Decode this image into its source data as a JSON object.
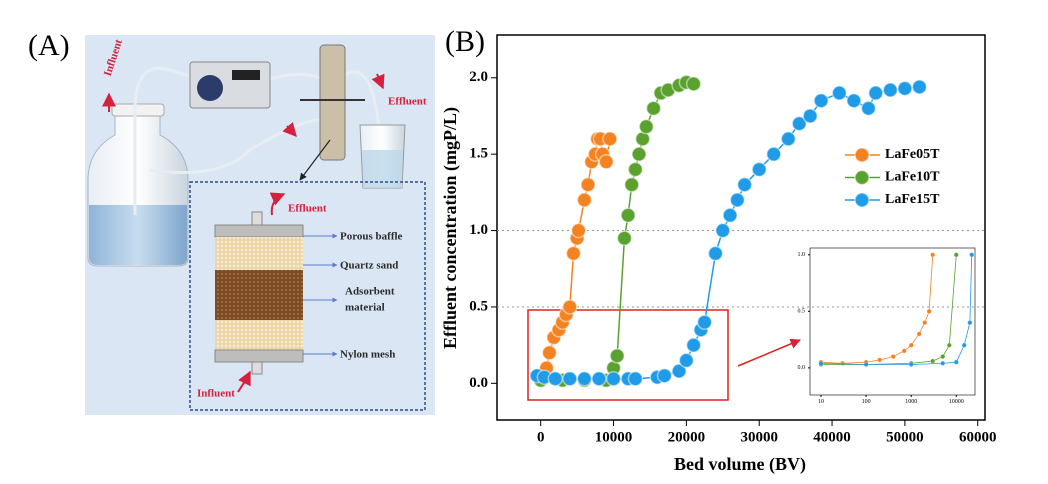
{
  "panel_a": {
    "label": "(A)",
    "influent_top": "Influent",
    "effluent_top": "Effluent",
    "column": {
      "effluent": "Effluent",
      "influent": "Influent",
      "layers": [
        "Porous baffle",
        "Quartz sand",
        [
          "Adsorbent",
          "material"
        ],
        "Nylon mesh"
      ]
    }
  },
  "chart_data": [
    {
      "type": "line",
      "panel_label": "(B)",
      "x_label": "Bed volume (BV)",
      "y_label": "Effluent concentration (mgP/L)",
      "xlim": [
        -6000,
        61000
      ],
      "ylim": [
        -0.24,
        2.28
      ],
      "xticks": [
        0,
        10000,
        20000,
        30000,
        40000,
        50000,
        60000
      ],
      "yticks": [
        {
          "value": 0,
          "label": "0.0"
        },
        0.5,
        {
          "value": 1,
          "label": "1.0"
        },
        1.5,
        {
          "value": 2,
          "label": "2.0"
        }
      ],
      "hlines": [
        0.5,
        1
      ],
      "legend": "upper right",
      "series": [
        {
          "name": "LaFe05T",
          "color": "#f58220",
          "x": [
            0,
            300,
            800,
            1200,
            1800,
            2500,
            3000,
            3500,
            4000,
            4500,
            5000,
            5200,
            6000,
            6500,
            7000,
            7500,
            7800,
            8200,
            8500,
            9000,
            9500
          ],
          "values": [
            0.05,
            0.03,
            0.1,
            0.2,
            0.3,
            0.35,
            0.4,
            0.45,
            0.5,
            0.85,
            0.95,
            1.0,
            1.2,
            1.3,
            1.45,
            1.5,
            1.6,
            1.6,
            1.5,
            1.45,
            1.6
          ]
        },
        {
          "name": "LaFe10T",
          "color": "#5aa12e",
          "x": [
            0,
            3000,
            6000,
            9000,
            10000,
            10500,
            11500,
            12000,
            12500,
            13000,
            13500,
            14000,
            14500,
            15500,
            16500,
            17500,
            19000,
            20000,
            21000
          ],
          "values": [
            0.02,
            0.02,
            0.02,
            0.02,
            0.1,
            0.18,
            0.95,
            1.1,
            1.3,
            1.4,
            1.5,
            1.6,
            1.68,
            1.8,
            1.9,
            1.92,
            1.95,
            1.97,
            1.96
          ]
        },
        {
          "name": "LaFe15T",
          "color": "#1f9be8",
          "x": [
            -500,
            500,
            2000,
            4000,
            6000,
            8000,
            10000,
            12000,
            13000,
            16000,
            17000,
            19000,
            20000,
            21000,
            22000,
            22500,
            24000,
            25000,
            26000,
            27000,
            28000,
            30000,
            32000,
            34000,
            35500,
            37000,
            38500,
            41000,
            43000,
            45000,
            46000,
            48000,
            50000,
            52000
          ],
          "values": [
            0.05,
            0.04,
            0.03,
            0.03,
            0.03,
            0.03,
            0.03,
            0.03,
            0.03,
            0.04,
            0.05,
            0.08,
            0.15,
            0.25,
            0.35,
            0.4,
            0.85,
            1.0,
            1.1,
            1.2,
            1.3,
            1.4,
            1.5,
            1.6,
            1.7,
            1.75,
            1.85,
            1.9,
            1.85,
            1.8,
            1.9,
            1.92,
            1.93,
            1.94
          ]
        }
      ]
    },
    {
      "type": "line",
      "xscale": "log",
      "xlim": [
        5.7,
        26000
      ],
      "ylim": [
        -0.24,
        1.06
      ],
      "xticks": [
        10,
        100,
        1000,
        10000
      ],
      "yticks": [
        {
          "value": 0,
          "label": "0.0"
        },
        0.5,
        {
          "value": 1,
          "label": "1.0"
        }
      ],
      "series": [
        {
          "color": "#f58220",
          "x": [
            10,
            30,
            100,
            200,
            400,
            700,
            1000,
            1500,
            2000,
            2500,
            3000
          ],
          "values": [
            0.05,
            0.04,
            0.05,
            0.07,
            0.1,
            0.15,
            0.2,
            0.3,
            0.4,
            0.5,
            1.0
          ]
        },
        {
          "color": "#5aa12e",
          "x": [
            10,
            100,
            1000,
            3000,
            5000,
            7000,
            10000
          ],
          "values": [
            0.03,
            0.03,
            0.04,
            0.06,
            0.1,
            0.2,
            1.0
          ]
        },
        {
          "color": "#1f9be8",
          "x": [
            10,
            100,
            1000,
            5000,
            10000,
            15000,
            20000,
            22000
          ],
          "values": [
            0.04,
            0.03,
            0.03,
            0.04,
            0.05,
            0.2,
            0.4,
            1.0
          ]
        }
      ]
    }
  ]
}
